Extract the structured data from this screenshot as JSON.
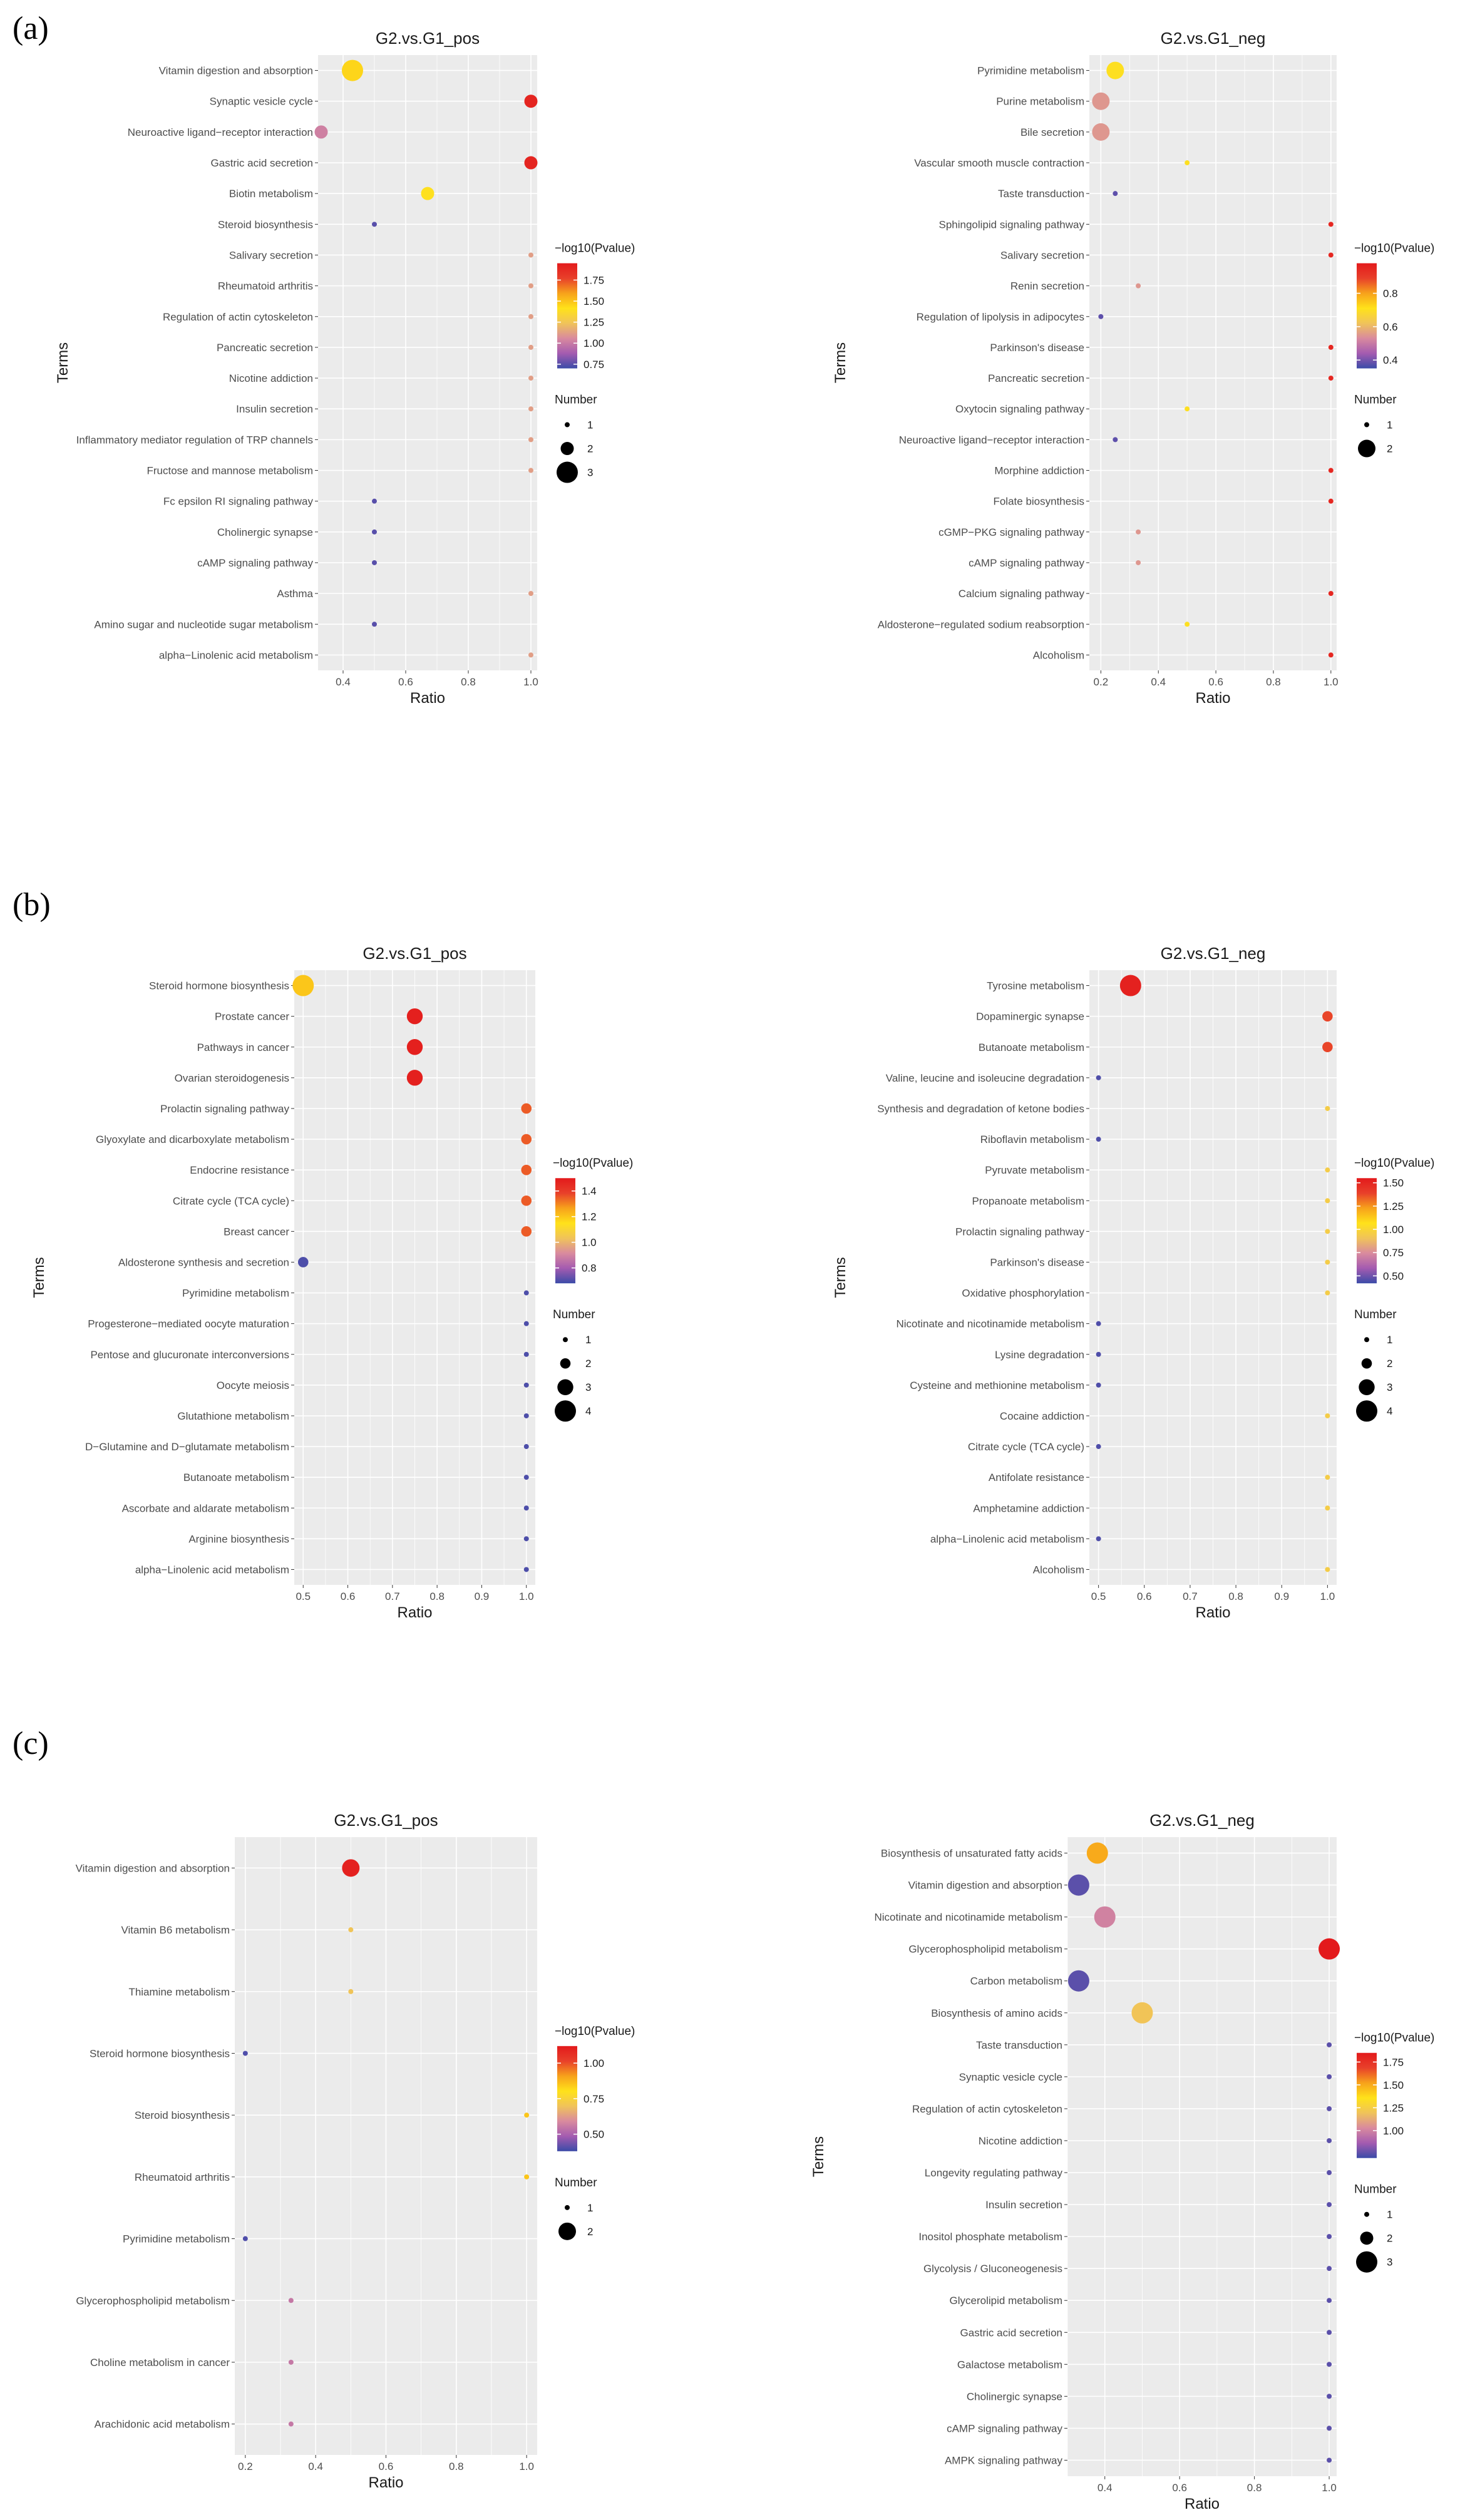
{
  "panel_labels": [
    "(a)",
    "(b)",
    "(c)"
  ],
  "colors": {
    "panel_bg": "#ebebeb",
    "grid": "#ffffff",
    "gradient": [
      "#3b4ba8",
      "#a45bb0",
      "#d98a9e",
      "#f0c35a",
      "#ffe21a",
      "#f7a21b",
      "#e8402a",
      "#e31a1c"
    ]
  },
  "chart_data": [
    {
      "panel": "(a)",
      "side": "left",
      "type": "scatter",
      "title": "G2.vs.G1_pos",
      "xlabel": "Ratio",
      "ylabel": "Terms",
      "xlim": [
        0.32,
        1.02
      ],
      "xticks": [
        "0.4",
        "0.6",
        "0.8",
        "1.0"
      ],
      "color_legend": {
        "title": "−log10(Pvalue)",
        "min": 0.7,
        "max": 1.95,
        "ticks": [
          "1.75",
          "1.50",
          "1.25",
          "1.00",
          "0.75"
        ]
      },
      "size_legend": {
        "title": "Number",
        "max": 3,
        "values": [
          "1",
          "2",
          "3"
        ]
      },
      "terms": [
        "Vitamin digestion and absorption",
        "Synaptic vesicle cycle",
        "Neuroactive ligand−receptor interaction",
        "Gastric acid secretion",
        "Biotin metabolism",
        "Steroid biosynthesis",
        "Salivary secretion",
        "Rheumatoid arthritis",
        "Regulation of actin cytoskeleton",
        "Pancreatic secretion",
        "Nicotine addiction",
        "Insulin secretion",
        "Inflammatory mediator regulation of TRP channels",
        "Fructose and mannose metabolism",
        "Fc epsilon RI signaling pathway",
        "Cholinergic synapse",
        "cAMP signaling pathway",
        "Asthma",
        "Amino sugar and nucleotide sugar metabolism",
        "alpha−Linolenic acid metabolism"
      ],
      "ratio": [
        0.43,
        1.0,
        0.33,
        1.0,
        0.67,
        0.5,
        1.0,
        1.0,
        1.0,
        1.0,
        1.0,
        1.0,
        1.0,
        1.0,
        0.5,
        0.5,
        0.5,
        1.0,
        0.5,
        1.0
      ],
      "neg_log10_p": [
        1.45,
        1.9,
        1.02,
        1.9,
        1.4,
        0.75,
        1.12,
        1.12,
        1.12,
        1.12,
        1.12,
        1.12,
        1.12,
        1.12,
        0.75,
        0.75,
        0.75,
        1.12,
        0.75,
        1.12
      ],
      "number": [
        3,
        2,
        2,
        2,
        2,
        1,
        1,
        1,
        1,
        1,
        1,
        1,
        1,
        1,
        1,
        1,
        1,
        1,
        1,
        1
      ]
    },
    {
      "panel": "(a)",
      "side": "right",
      "type": "scatter",
      "title": "G2.vs.G1_neg",
      "xlabel": "Ratio",
      "ylabel": "Terms",
      "xlim": [
        0.16,
        1.02
      ],
      "xticks": [
        "0.2",
        "0.4",
        "0.6",
        "0.8",
        "1.0"
      ],
      "color_legend": {
        "title": "−log10(Pvalue)",
        "min": 0.35,
        "max": 0.98,
        "ticks": [
          "0.8",
          "0.6",
          "0.4"
        ]
      },
      "size_legend": {
        "title": "Number",
        "max": 2,
        "values": [
          "1",
          "2"
        ]
      },
      "terms": [
        "Pyrimidine metabolism",
        "Purine metabolism",
        "Bile secretion",
        "Vascular smooth muscle contraction",
        "Taste transduction",
        "Sphingolipid signaling pathway",
        "Salivary secretion",
        "Renin secretion",
        "Regulation of lipolysis in adipocytes",
        "Parkinson's disease",
        "Pancreatic secretion",
        "Oxytocin signaling pathway",
        "Neuroactive ligand−receptor interaction",
        "Morphine addiction",
        "Folate biosynthesis",
        "cGMP−PKG signaling pathway",
        "cAMP signaling pathway",
        "Calcium signaling pathway",
        "Aldosterone−regulated sodium reabsorption",
        "Alcoholism"
      ],
      "ratio": [
        0.25,
        0.2,
        0.2,
        0.5,
        0.25,
        1.0,
        1.0,
        0.33,
        0.2,
        1.0,
        1.0,
        0.5,
        0.25,
        1.0,
        1.0,
        0.33,
        0.33,
        1.0,
        0.5,
        1.0
      ],
      "neg_log10_p": [
        0.7,
        0.55,
        0.55,
        0.7,
        0.38,
        0.95,
        0.95,
        0.55,
        0.38,
        0.95,
        0.95,
        0.7,
        0.38,
        0.95,
        0.95,
        0.55,
        0.55,
        0.95,
        0.7,
        0.95
      ],
      "number": [
        2,
        2,
        2,
        1,
        1,
        1,
        1,
        1,
        1,
        1,
        1,
        1,
        1,
        1,
        1,
        1,
        1,
        1,
        1,
        1
      ]
    },
    {
      "panel": "(b)",
      "side": "left",
      "type": "scatter",
      "title": "G2.vs.G1_pos",
      "xlabel": "Ratio",
      "ylabel": "Terms",
      "xlim": [
        0.48,
        1.02
      ],
      "xticks": [
        "0.5",
        "0.6",
        "0.7",
        "0.8",
        "0.9",
        "1.0"
      ],
      "color_legend": {
        "title": "−log10(Pvalue)",
        "min": 0.68,
        "max": 1.5,
        "ticks": [
          "1.4",
          "1.2",
          "1.0",
          "0.8"
        ]
      },
      "size_legend": {
        "title": "Number",
        "max": 4,
        "values": [
          "1",
          "2",
          "3",
          "4"
        ]
      },
      "terms": [
        "Steroid hormone biosynthesis",
        "Prostate cancer",
        "Pathways in cancer",
        "Ovarian steroidogenesis",
        "Prolactin signaling pathway",
        "Glyoxylate and dicarboxylate metabolism",
        "Endocrine resistance",
        "Citrate cycle (TCA cycle)",
        "Breast cancer",
        "Aldosterone synthesis and secretion",
        "Pyrimidine metabolism",
        "Progesterone−mediated oocyte maturation",
        "Pentose and glucuronate interconversions",
        "Oocyte meiosis",
        "Glutathione metabolism",
        "D−Glutamine and D−glutamate metabolism",
        "Butanoate metabolism",
        "Ascorbate and aldarate metabolism",
        "Arginine biosynthesis",
        "alpha−Linolenic acid metabolism"
      ],
      "ratio": [
        0.5,
        0.75,
        0.75,
        0.75,
        1.0,
        1.0,
        1.0,
        1.0,
        1.0,
        0.5,
        1.0,
        1.0,
        1.0,
        1.0,
        1.0,
        1.0,
        1.0,
        1.0,
        1.0,
        1.0
      ],
      "neg_log10_p": [
        1.2,
        1.48,
        1.48,
        1.48,
        1.35,
        1.35,
        1.35,
        1.35,
        1.35,
        0.7,
        0.7,
        0.7,
        0.7,
        0.7,
        0.7,
        0.7,
        0.7,
        0.7,
        0.7,
        0.7
      ],
      "number": [
        4,
        3,
        3,
        3,
        2,
        2,
        2,
        2,
        2,
        2,
        1,
        1,
        1,
        1,
        1,
        1,
        1,
        1,
        1,
        1
      ]
    },
    {
      "panel": "(b)",
      "side": "right",
      "type": "scatter",
      "title": "G2.vs.G1_neg",
      "xlabel": "Ratio",
      "ylabel": "Terms",
      "xlim": [
        0.48,
        1.02
      ],
      "xticks": [
        "0.5",
        "0.6",
        "0.7",
        "0.8",
        "0.9",
        "1.0"
      ],
      "color_legend": {
        "title": "−log10(Pvalue)",
        "min": 0.42,
        "max": 1.55,
        "ticks": [
          "1.50",
          "1.25",
          "1.00",
          "0.75",
          "0.50"
        ]
      },
      "size_legend": {
        "title": "Number",
        "max": 4,
        "values": [
          "1",
          "2",
          "3",
          "4"
        ]
      },
      "terms": [
        "Tyrosine metabolism",
        "Dopaminergic synapse",
        "Butanoate metabolism",
        "Valine, leucine and isoleucine degradation",
        "Synthesis and degradation of ketone bodies",
        "Riboflavin metabolism",
        "Pyruvate metabolism",
        "Propanoate metabolism",
        "Prolactin signaling pathway",
        "Parkinson's disease",
        "Oxidative phosphorylation",
        "Nicotinate and nicotinamide metabolism",
        "Lysine degradation",
        "Cysteine and methionine metabolism",
        "Cocaine addiction",
        "Citrate cycle (TCA cycle)",
        "Antifolate resistance",
        "Amphetamine addiction",
        "alpha−Linolenic acid metabolism",
        "Alcoholism"
      ],
      "ratio": [
        0.57,
        1.0,
        1.0,
        0.5,
        1.0,
        0.5,
        1.0,
        1.0,
        1.0,
        1.0,
        1.0,
        0.5,
        0.5,
        0.5,
        1.0,
        0.5,
        1.0,
        1.0,
        0.5,
        1.0
      ],
      "neg_log10_p": [
        1.52,
        1.38,
        1.38,
        0.45,
        0.95,
        0.45,
        0.95,
        0.95,
        0.95,
        0.95,
        0.95,
        0.45,
        0.45,
        0.45,
        0.95,
        0.45,
        0.95,
        0.95,
        0.45,
        0.95
      ],
      "number": [
        4,
        2,
        2,
        1,
        1,
        1,
        1,
        1,
        1,
        1,
        1,
        1,
        1,
        1,
        1,
        1,
        1,
        1,
        1,
        1
      ]
    },
    {
      "panel": "(c)",
      "side": "left",
      "type": "scatter",
      "title": "G2.vs.G1_pos",
      "xlabel": "Ratio",
      "ylabel": "Terms",
      "xlim": [
        0.17,
        1.03
      ],
      "xticks": [
        "0.2",
        "0.4",
        "0.6",
        "0.8",
        "1.0"
      ],
      "color_legend": {
        "title": "−log10(Pvalue)",
        "min": 0.38,
        "max": 1.12,
        "ticks": [
          "1.00",
          "0.75",
          "0.50"
        ]
      },
      "size_legend": {
        "title": "Number",
        "max": 2,
        "values": [
          "1",
          "2"
        ]
      },
      "terms": [
        "Vitamin digestion and absorption",
        "Vitamin B6 metabolism",
        "Thiamine metabolism",
        "Steroid hormone biosynthesis",
        "Steroid biosynthesis",
        "Rheumatoid arthritis",
        "Pyrimidine metabolism",
        "Glycerophospholipid metabolism",
        "Choline metabolism in cancer",
        "Arachidonic acid metabolism"
      ],
      "ratio": [
        0.5,
        0.5,
        0.5,
        0.2,
        1.0,
        1.0,
        0.2,
        0.33,
        0.33,
        0.33
      ],
      "neg_log10_p": [
        1.1,
        0.7,
        0.7,
        0.4,
        0.85,
        0.85,
        0.4,
        0.55,
        0.55,
        0.55
      ],
      "number": [
        2,
        1,
        1,
        1,
        1,
        1,
        1,
        1,
        1,
        1
      ]
    },
    {
      "panel": "(c)",
      "side": "right",
      "type": "scatter",
      "title": "G2.vs.G1_neg",
      "xlabel": "Ratio",
      "ylabel": "Terms",
      "xlim": [
        0.3,
        1.02
      ],
      "xticks": [
        "0.4",
        "0.6",
        "0.8",
        "1.0"
      ],
      "color_legend": {
        "title": "−log10(Pvalue)",
        "min": 0.7,
        "max": 1.85,
        "ticks": [
          "1.75",
          "1.50",
          "1.25",
          "1.00"
        ]
      },
      "size_legend": {
        "title": "Number",
        "max": 3,
        "values": [
          "1",
          "2",
          "3"
        ]
      },
      "terms": [
        "Biosynthesis of unsaturated fatty acids",
        "Vitamin digestion and absorption",
        "Nicotinate and nicotinamide metabolism",
        "Glycerophospholipid metabolism",
        "Carbon metabolism",
        "Biosynthesis of amino acids",
        "Taste transduction",
        "Synaptic vesicle cycle",
        "Regulation of actin cytoskeleton",
        "Nicotine addiction",
        "Longevity regulating pathway",
        "Insulin secretion",
        "Inositol phosphate metabolism",
        "Glycolysis / Gluconeogenesis",
        "Glycerolipid metabolism",
        "Gastric acid secretion",
        "Galactose metabolism",
        "Cholinergic synapse",
        "cAMP signaling pathway",
        "AMPK signaling pathway"
      ],
      "ratio": [
        0.38,
        0.33,
        0.4,
        1.0,
        0.33,
        0.5,
        1.0,
        1.0,
        1.0,
        1.0,
        1.0,
        1.0,
        1.0,
        1.0,
        1.0,
        1.0,
        1.0,
        1.0,
        1.0,
        1.0
      ],
      "neg_log10_p": [
        1.5,
        0.75,
        1.0,
        1.85,
        0.75,
        1.2,
        0.75,
        0.75,
        0.75,
        0.75,
        0.75,
        0.75,
        0.75,
        0.75,
        0.75,
        0.75,
        0.75,
        0.75,
        0.75,
        0.75
      ],
      "number": [
        3,
        3,
        3,
        3,
        3,
        3,
        1,
        1,
        1,
        1,
        1,
        1,
        1,
        1,
        1,
        1,
        1,
        1,
        1,
        1
      ]
    }
  ]
}
